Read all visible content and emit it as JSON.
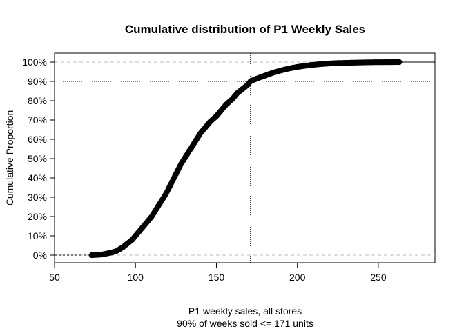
{
  "chart_data": {
    "type": "line",
    "title": "Cumulative distribution of P1 Weekly Sales",
    "xlabel": "P1 weekly sales, all stores",
    "xlabel_line2": "90% of weeks sold <= 171 units",
    "ylabel": "Cumulative Proportion",
    "xlim": [
      50,
      285
    ],
    "ylim": [
      0,
      1
    ],
    "x_ticks": [
      50,
      100,
      150,
      200,
      250
    ],
    "x_tick_labels": [
      "50",
      "100",
      "150",
      "200",
      "250"
    ],
    "y_ticks": [
      0,
      0.1,
      0.2,
      0.3,
      0.4,
      0.5,
      0.6,
      0.7,
      0.8,
      0.9,
      1.0
    ],
    "y_tick_labels": [
      "0%",
      "10%",
      "20%",
      "30%",
      "40%",
      "50%",
      "60%",
      "70%",
      "80%",
      "90%",
      "100%"
    ],
    "reference_lines": {
      "horizontal_dashed": [
        0,
        1
      ],
      "horizontal_dotted": 0.9,
      "vertical_dotted": 171
    },
    "series": [
      {
        "points": [
          [
            73,
            0.0
          ],
          [
            77,
            0.002
          ],
          [
            80,
            0.004
          ],
          [
            82,
            0.008
          ],
          [
            85,
            0.013
          ],
          [
            88,
            0.02
          ],
          [
            90,
            0.03
          ],
          [
            92,
            0.04
          ],
          [
            95,
            0.06
          ],
          [
            98,
            0.08
          ],
          [
            100,
            0.1
          ],
          [
            103,
            0.13
          ],
          [
            106,
            0.16
          ],
          [
            110,
            0.2
          ],
          [
            113,
            0.24
          ],
          [
            116,
            0.28
          ],
          [
            119,
            0.32
          ],
          [
            122,
            0.37
          ],
          [
            125,
            0.42
          ],
          [
            128,
            0.47
          ],
          [
            131,
            0.51
          ],
          [
            134,
            0.55
          ],
          [
            137,
            0.59
          ],
          [
            140,
            0.63
          ],
          [
            143,
            0.66
          ],
          [
            146,
            0.69
          ],
          [
            150,
            0.72
          ],
          [
            153,
            0.75
          ],
          [
            156,
            0.78
          ],
          [
            160,
            0.81
          ],
          [
            163,
            0.84
          ],
          [
            166,
            0.86
          ],
          [
            169,
            0.88
          ],
          [
            171,
            0.9
          ],
          [
            175,
            0.915
          ],
          [
            180,
            0.93
          ],
          [
            185,
            0.945
          ],
          [
            190,
            0.957
          ],
          [
            195,
            0.967
          ],
          [
            200,
            0.975
          ],
          [
            205,
            0.981
          ],
          [
            210,
            0.986
          ],
          [
            215,
            0.99
          ],
          [
            220,
            0.993
          ],
          [
            225,
            0.995
          ],
          [
            230,
            0.996
          ],
          [
            235,
            0.997
          ],
          [
            240,
            0.998
          ],
          [
            245,
            0.999
          ],
          [
            263,
            1.0
          ]
        ]
      }
    ]
  }
}
